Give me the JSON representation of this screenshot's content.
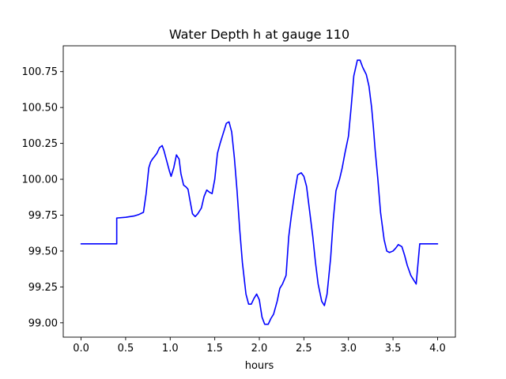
{
  "chart_data": {
    "type": "line",
    "title": "Water Depth h at gauge 110",
    "xlabel": "hours",
    "ylabel": "",
    "xlim": [
      -0.2,
      4.2
    ],
    "ylim": [
      98.9,
      100.93
    ],
    "grid": false,
    "line_color": "#0000ff",
    "xticks": [
      0.0,
      0.5,
      1.0,
      1.5,
      2.0,
      2.5,
      3.0,
      3.5,
      4.0
    ],
    "xtick_labels": [
      "0.0",
      "0.5",
      "1.0",
      "1.5",
      "2.0",
      "2.5",
      "3.0",
      "3.5",
      "4.0"
    ],
    "yticks": [
      99.0,
      99.25,
      99.5,
      99.75,
      100.0,
      100.25,
      100.5,
      100.75
    ],
    "ytick_labels": [
      "99.00",
      "99.25",
      "99.50",
      "99.75",
      "100.00",
      "100.25",
      "100.50",
      "100.75"
    ],
    "series": [
      {
        "x": [
          0.0,
          0.2,
          0.4,
          0.4,
          0.5,
          0.6,
          0.65,
          0.7,
          0.73,
          0.76,
          0.78,
          0.8,
          0.85,
          0.88,
          0.91,
          0.93,
          0.96,
          0.99,
          1.01,
          1.04,
          1.07,
          1.1,
          1.12,
          1.15,
          1.18,
          1.2,
          1.22,
          1.25,
          1.28,
          1.31,
          1.35,
          1.38,
          1.41,
          1.44,
          1.47,
          1.5,
          1.53,
          1.56,
          1.6,
          1.63,
          1.66,
          1.69,
          1.72,
          1.75,
          1.78,
          1.81,
          1.85,
          1.88,
          1.91,
          1.94,
          1.97,
          2.0,
          2.03,
          2.06,
          2.1,
          2.13,
          2.16,
          2.2,
          2.23,
          2.26,
          2.3,
          2.33,
          2.36,
          2.4,
          2.43,
          2.47,
          2.5,
          2.53,
          2.56,
          2.6,
          2.63,
          2.66,
          2.7,
          2.73,
          2.76,
          2.8,
          2.83,
          2.86,
          2.9,
          2.93,
          2.96,
          3.0,
          3.03,
          3.06,
          3.1,
          3.13,
          3.16,
          3.2,
          3.23,
          3.26,
          3.28,
          3.3,
          3.33,
          3.36,
          3.4,
          3.43,
          3.46,
          3.5,
          3.53,
          3.56,
          3.6,
          3.63,
          3.66,
          3.7,
          3.73,
          3.76,
          3.8,
          3.83,
          3.86,
          3.9,
          3.93,
          3.96,
          4.0
        ],
        "y": [
          99.55,
          99.55,
          99.55,
          99.73,
          99.735,
          99.745,
          99.755,
          99.77,
          99.9,
          100.08,
          100.12,
          100.14,
          100.18,
          100.22,
          100.235,
          100.2,
          100.13,
          100.06,
          100.02,
          100.08,
          100.17,
          100.14,
          100.04,
          99.96,
          99.945,
          99.93,
          99.86,
          99.76,
          99.74,
          99.76,
          99.8,
          99.88,
          99.925,
          99.91,
          99.9,
          100.0,
          100.18,
          100.25,
          100.33,
          100.39,
          100.4,
          100.33,
          100.15,
          99.92,
          99.65,
          99.42,
          99.2,
          99.13,
          99.13,
          99.17,
          99.2,
          99.16,
          99.04,
          98.99,
          98.99,
          99.03,
          99.06,
          99.15,
          99.24,
          99.27,
          99.33,
          99.6,
          99.75,
          99.92,
          100.03,
          100.045,
          100.02,
          99.95,
          99.8,
          99.6,
          99.42,
          99.27,
          99.15,
          99.12,
          99.2,
          99.45,
          99.72,
          99.92,
          100.0,
          100.08,
          100.18,
          100.3,
          100.5,
          100.72,
          100.83,
          100.83,
          100.78,
          100.73,
          100.65,
          100.5,
          100.36,
          100.2,
          100.0,
          99.77,
          99.58,
          99.5,
          99.49,
          99.5,
          99.52,
          99.545,
          99.53,
          99.47,
          99.4,
          99.33,
          99.3,
          99.27,
          99.55,
          99.55,
          99.55,
          99.55,
          99.55,
          99.55,
          99.55
        ]
      }
    ]
  }
}
